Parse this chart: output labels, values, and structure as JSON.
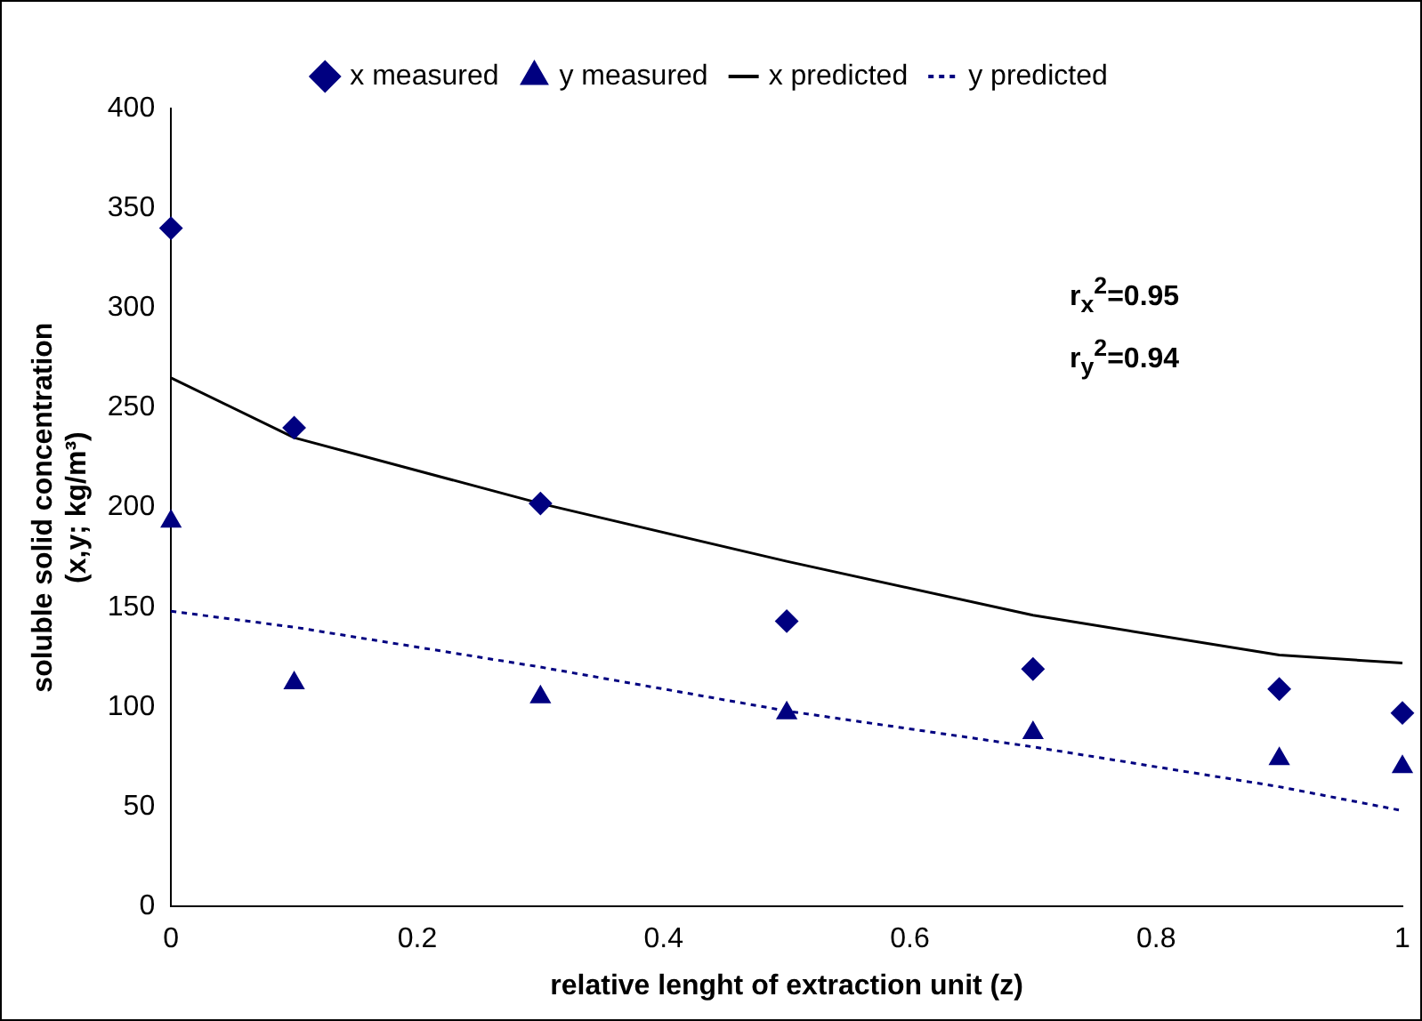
{
  "chart_data": {
    "type": "scatter",
    "xlabel": "relative lenght of extraction unit (z)",
    "ylabel": "soluble solid concentration\n(x,y; kg/m³)",
    "x": [
      0,
      0.1,
      0.3,
      0.5,
      0.7,
      0.9,
      1
    ],
    "series": [
      {
        "name": "x measured",
        "marker": "diamond",
        "color": "#000080",
        "values": [
          340,
          240,
          202,
          143,
          119,
          109,
          97
        ]
      },
      {
        "name": "y measured",
        "marker": "triangle",
        "color": "#000080",
        "values": [
          193,
          112,
          105,
          97,
          87,
          74,
          70
        ]
      },
      {
        "name": "x predicted",
        "type": "line",
        "marker": "none",
        "line_style": "solid",
        "color": "#000000",
        "values": [
          265,
          235,
          202,
          173,
          146,
          126,
          122
        ]
      },
      {
        "name": "y predicted",
        "type": "line",
        "marker": "none",
        "line_style": "dotted",
        "color": "#000080",
        "values": [
          148,
          140,
          120,
          98,
          80,
          60,
          48
        ]
      }
    ],
    "xlim": [
      0,
      1
    ],
    "xticks": [
      0,
      0.2,
      0.4,
      0.6,
      0.8,
      1
    ],
    "ylim": [
      0,
      400
    ],
    "yticks": [
      0,
      50,
      100,
      150,
      200,
      250,
      300,
      350,
      400
    ],
    "grid": false,
    "legend": "top",
    "annotations": [
      "r$_{x}$$^{2}$=0.95",
      "r$_{y}$$^{2}$=0.94"
    ]
  }
}
